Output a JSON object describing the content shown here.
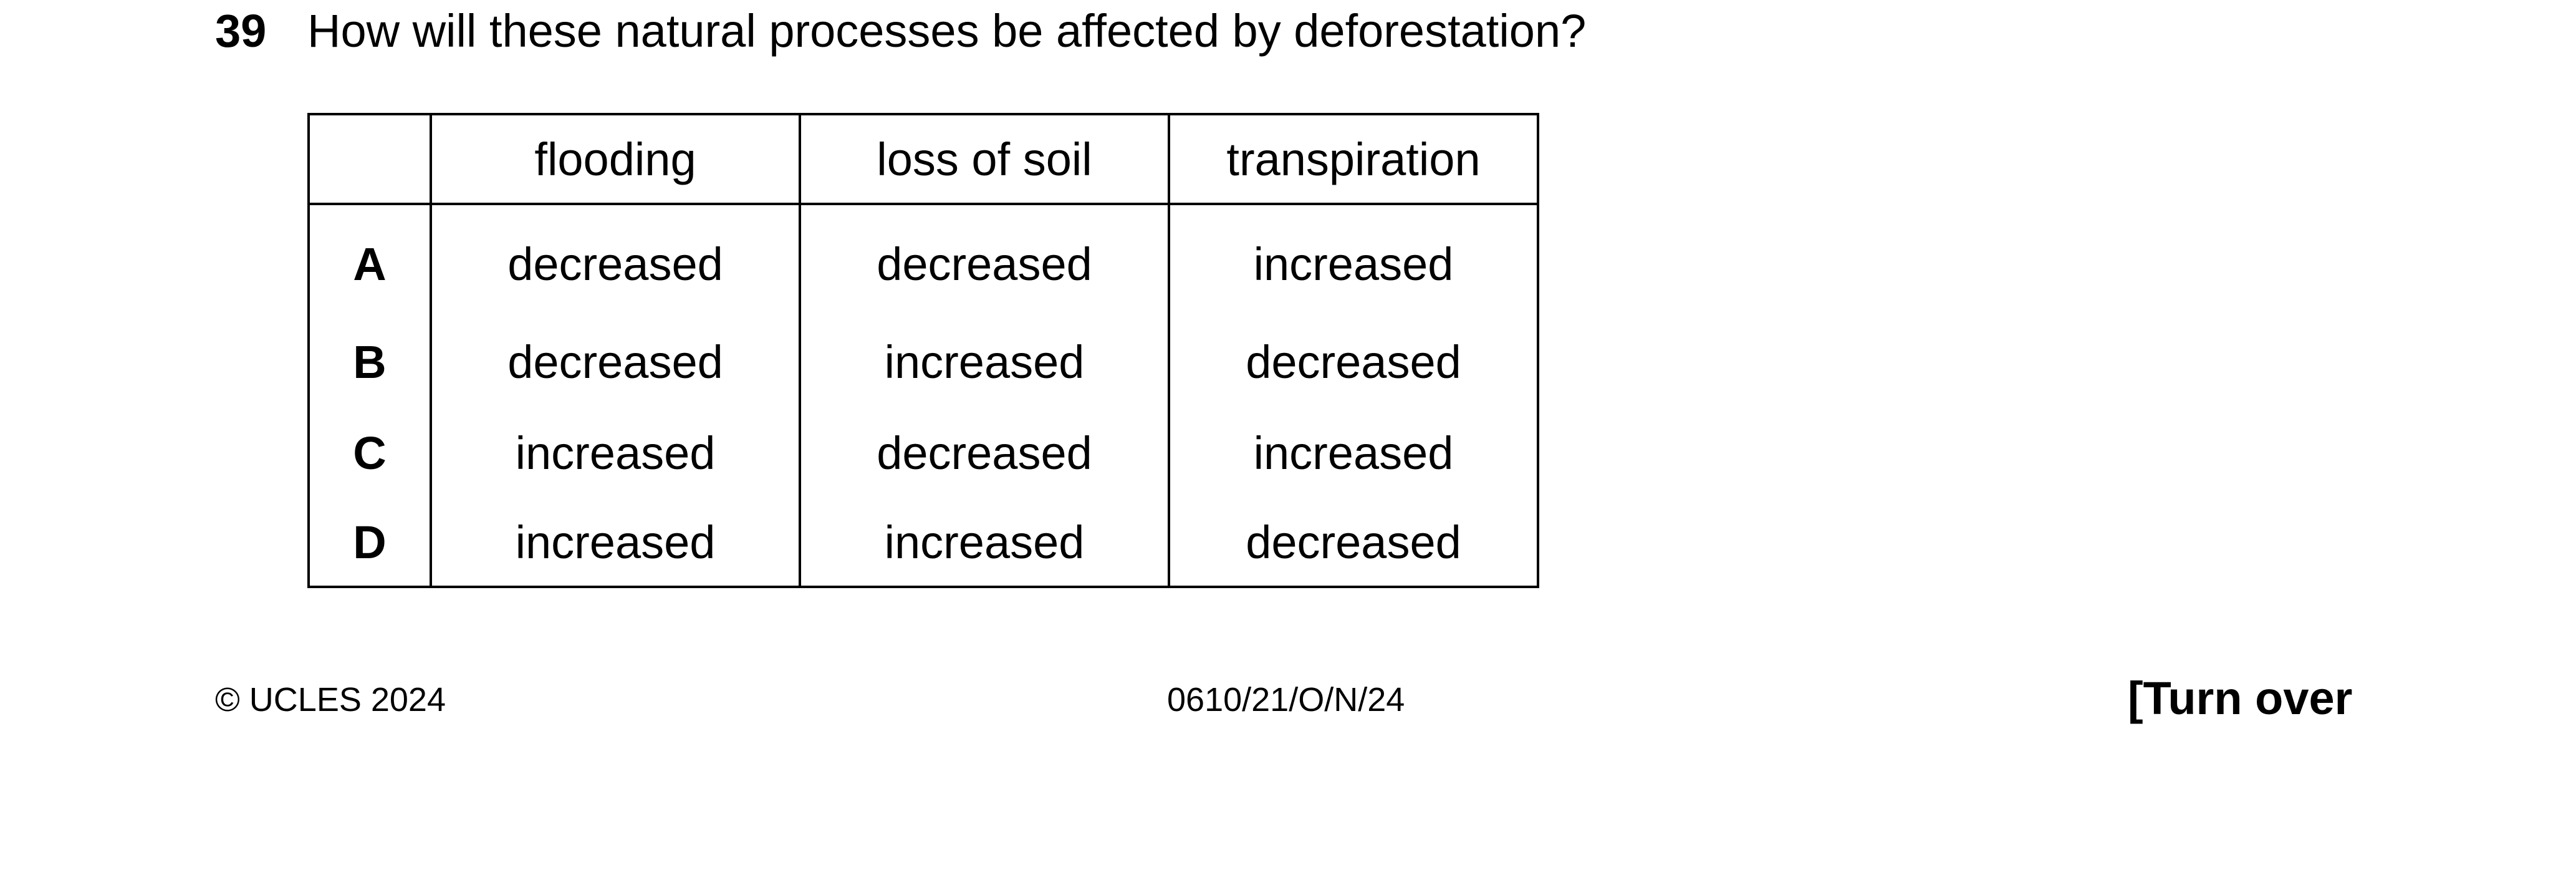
{
  "question": {
    "number": "39",
    "text": "How will these natural processes be affected by deforestation?"
  },
  "table": {
    "headers": [
      "",
      "flooding",
      "loss of soil",
      "transpiration"
    ],
    "rows": [
      {
        "key": "A",
        "flooding": "decreased",
        "loss_of_soil": "decreased",
        "transpiration": "increased"
      },
      {
        "key": "B",
        "flooding": "decreased",
        "loss_of_soil": "increased",
        "transpiration": "decreased"
      },
      {
        "key": "C",
        "flooding": "increased",
        "loss_of_soil": "decreased",
        "transpiration": "increased"
      },
      {
        "key": "D",
        "flooding": "increased",
        "loss_of_soil": "increased",
        "transpiration": "decreased"
      }
    ]
  },
  "footer": {
    "copyright": "© UCLES 2024",
    "paper_code": "0610/21/O/N/24",
    "turn_over": "[Turn over"
  }
}
